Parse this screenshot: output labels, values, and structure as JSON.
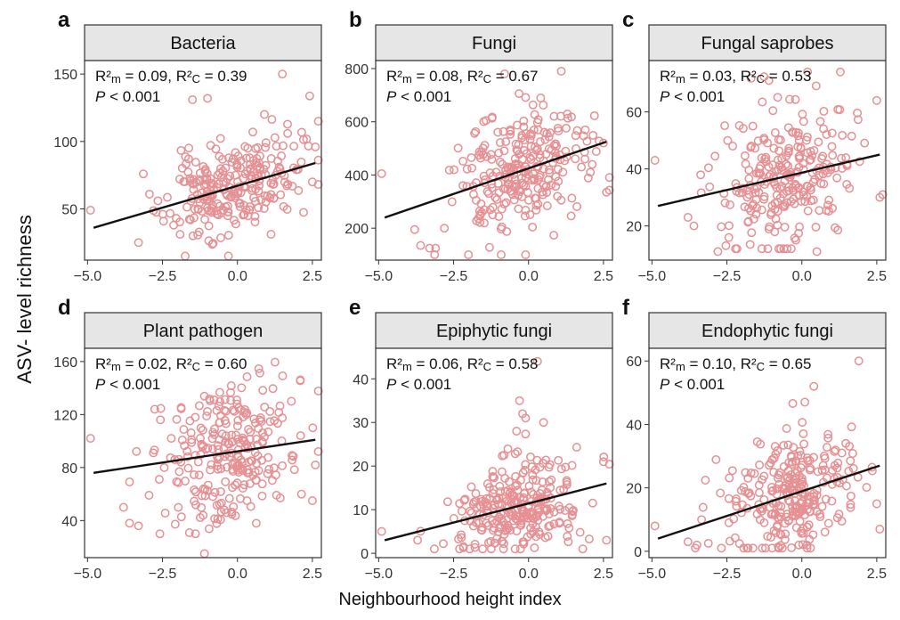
{
  "figure": {
    "ylabel": "ASV- level richness",
    "xlabel": "Neighbourhood height index",
    "colors": {
      "points": "#e69093",
      "line": "#111111",
      "strip": "#e6e6e6"
    }
  },
  "chart_data": [
    {
      "type": "scatter",
      "letter": "a",
      "title": "Bacteria",
      "xlim": [
        -5.1,
        2.8
      ],
      "xticks": [
        -5.0,
        -2.5,
        0.0,
        2.5
      ],
      "ylim": [
        12,
        160
      ],
      "yticks": [
        50,
        100,
        150
      ],
      "stats": {
        "r2m": "0.09",
        "r2c": "0.39",
        "p": "< 0.001"
      },
      "fit": {
        "x": [
          -4.8,
          2.6
        ],
        "y": [
          36,
          84
        ]
      },
      "extra_points": [
        [
          -1.0,
          132
        ],
        [
          1.5,
          150
        ],
        [
          -4.9,
          49
        ],
        [
          -3.3,
          25
        ],
        [
          2.6,
          96
        ],
        [
          2.5,
          70
        ],
        [
          -0.3,
          15
        ],
        [
          -1.5,
          131
        ],
        [
          0.9,
          120
        ]
      ],
      "cloud": {
        "n": 260,
        "seed": 11,
        "xmean": -0.2,
        "xsd": 1.1,
        "xmin": -3.8,
        "xmax": 2.7,
        "ysd": 17,
        "ymin": 15,
        "ymax": 145
      }
    },
    {
      "type": "scatter",
      "letter": "b",
      "title": "Fungi",
      "xlim": [
        -5.1,
        2.8
      ],
      "xticks": [
        -5.0,
        -2.5,
        0.0,
        2.5
      ],
      "ylim": [
        80,
        830
      ],
      "yticks": [
        200,
        400,
        600,
        800
      ],
      "stats": {
        "r2m": "0.08",
        "r2c": "0.67",
        "p": "< 0.001"
      },
      "fit": {
        "x": [
          -4.8,
          2.6
        ],
        "y": [
          240,
          525
        ]
      },
      "extra_points": [
        [
          -0.8,
          780
        ],
        [
          -4.9,
          405
        ],
        [
          -3.8,
          195
        ],
        [
          -3.6,
          135
        ],
        [
          -3.3,
          125
        ],
        [
          -3.1,
          125
        ],
        [
          2.6,
          335
        ],
        [
          2.5,
          520
        ],
        [
          -0.1,
          100
        ]
      ],
      "cloud": {
        "n": 260,
        "seed": 23,
        "xmean": -0.3,
        "xsd": 1.1,
        "xmin": -3.8,
        "xmax": 2.7,
        "ysd": 115,
        "ymin": 100,
        "ymax": 790
      }
    },
    {
      "type": "scatter",
      "letter": "c",
      "title": "Fungal saprobes",
      "xlim": [
        -5.1,
        2.8
      ],
      "xticks": [
        -5.0,
        -2.5,
        0.0,
        2.5
      ],
      "ylim": [
        8,
        78
      ],
      "yticks": [
        20,
        40,
        60
      ],
      "stats": {
        "r2m": "0.03",
        "r2c": "0.53",
        "p": "< 0.001"
      },
      "fit": {
        "x": [
          -4.8,
          2.6
        ],
        "y": [
          27,
          45
        ]
      },
      "extra_points": [
        [
          -4.9,
          43
        ],
        [
          -3.8,
          23
        ],
        [
          -3.6,
          20
        ],
        [
          -2.8,
          11
        ],
        [
          2.6,
          30
        ],
        [
          2.5,
          64
        ],
        [
          0.5,
          11
        ],
        [
          -1.1,
          71
        ]
      ],
      "cloud": {
        "n": 260,
        "seed": 37,
        "xmean": -0.4,
        "xsd": 1.1,
        "xmin": -3.6,
        "xmax": 2.7,
        "ysd": 12,
        "ymin": 12,
        "ymax": 74
      }
    },
    {
      "type": "scatter",
      "letter": "d",
      "title": "Plant pathogen",
      "xlim": [
        -5.1,
        2.8
      ],
      "xticks": [
        -5.0,
        -2.5,
        0.0,
        2.5
      ],
      "ylim": [
        12,
        170
      ],
      "yticks": [
        40,
        80,
        120,
        160
      ],
      "stats": {
        "r2m": "0.02",
        "r2c": "0.60",
        "p": "< 0.001"
      },
      "fit": {
        "x": [
          -4.8,
          2.6
        ],
        "y": [
          76,
          101
        ]
      },
      "extra_points": [
        [
          -4.9,
          102
        ],
        [
          -3.8,
          50
        ],
        [
          -3.6,
          38
        ],
        [
          -3.3,
          36
        ],
        [
          -1.1,
          15
        ],
        [
          2.6,
          82
        ],
        [
          2.5,
          55
        ],
        [
          1.8,
          130
        ]
      ],
      "cloud": {
        "n": 260,
        "seed": 53,
        "xmean": -0.4,
        "xsd": 1.1,
        "xmin": -3.6,
        "xmax": 2.7,
        "ysd": 26,
        "ymin": 30,
        "ymax": 160
      }
    },
    {
      "type": "scatter",
      "letter": "e",
      "title": "Epiphytic fungi",
      "xlim": [
        -5.1,
        2.8
      ],
      "xticks": [
        -5.0,
        -2.5,
        0.0,
        2.5
      ],
      "ylim": [
        -1,
        47
      ],
      "yticks": [
        0,
        10,
        20,
        30,
        40
      ],
      "stats": {
        "r2m": "0.06",
        "r2c": "0.58",
        "p": "< 0.001"
      },
      "fit": {
        "x": [
          -4.8,
          2.6
        ],
        "y": [
          3,
          16
        ]
      },
      "extra_points": [
        [
          0.3,
          44
        ],
        [
          -0.3,
          35
        ],
        [
          -0.2,
          32
        ],
        [
          -0.1,
          31
        ],
        [
          0.5,
          30
        ],
        [
          -0.4,
          28
        ],
        [
          2.6,
          3
        ],
        [
          2.5,
          21
        ],
        [
          -4.9,
          5
        ],
        [
          -3.7,
          3
        ]
      ],
      "cloud": {
        "n": 270,
        "seed": 71,
        "xmean": -0.4,
        "xsd": 1.1,
        "xmin": -3.6,
        "xmax": 2.7,
        "ysd": 5.5,
        "ymin": 1,
        "ymax": 28
      }
    },
    {
      "type": "scatter",
      "letter": "f",
      "title": "Endophytic fungi",
      "xlim": [
        -5.1,
        2.8
      ],
      "xticks": [
        -5.0,
        -2.5,
        0.0,
        2.5
      ],
      "ylim": [
        -2,
        64
      ],
      "yticks": [
        0,
        20,
        40,
        60
      ],
      "stats": {
        "r2m": "0.10",
        "r2c": "0.65",
        "p": "< 0.001"
      },
      "fit": {
        "x": [
          -4.8,
          2.6
        ],
        "y": [
          4,
          27
        ]
      },
      "extra_points": [
        [
          1.9,
          60
        ],
        [
          0.4,
          52
        ],
        [
          -4.9,
          8
        ],
        [
          -3.8,
          3
        ],
        [
          -3.5,
          2
        ],
        [
          2.6,
          7
        ],
        [
          2.5,
          15
        ],
        [
          0.1,
          47
        ]
      ],
      "cloud": {
        "n": 270,
        "seed": 89,
        "xmean": -0.4,
        "xsd": 1.1,
        "xmin": -3.6,
        "xmax": 2.7,
        "ysd": 9,
        "ymin": 1,
        "ymax": 47
      }
    }
  ]
}
